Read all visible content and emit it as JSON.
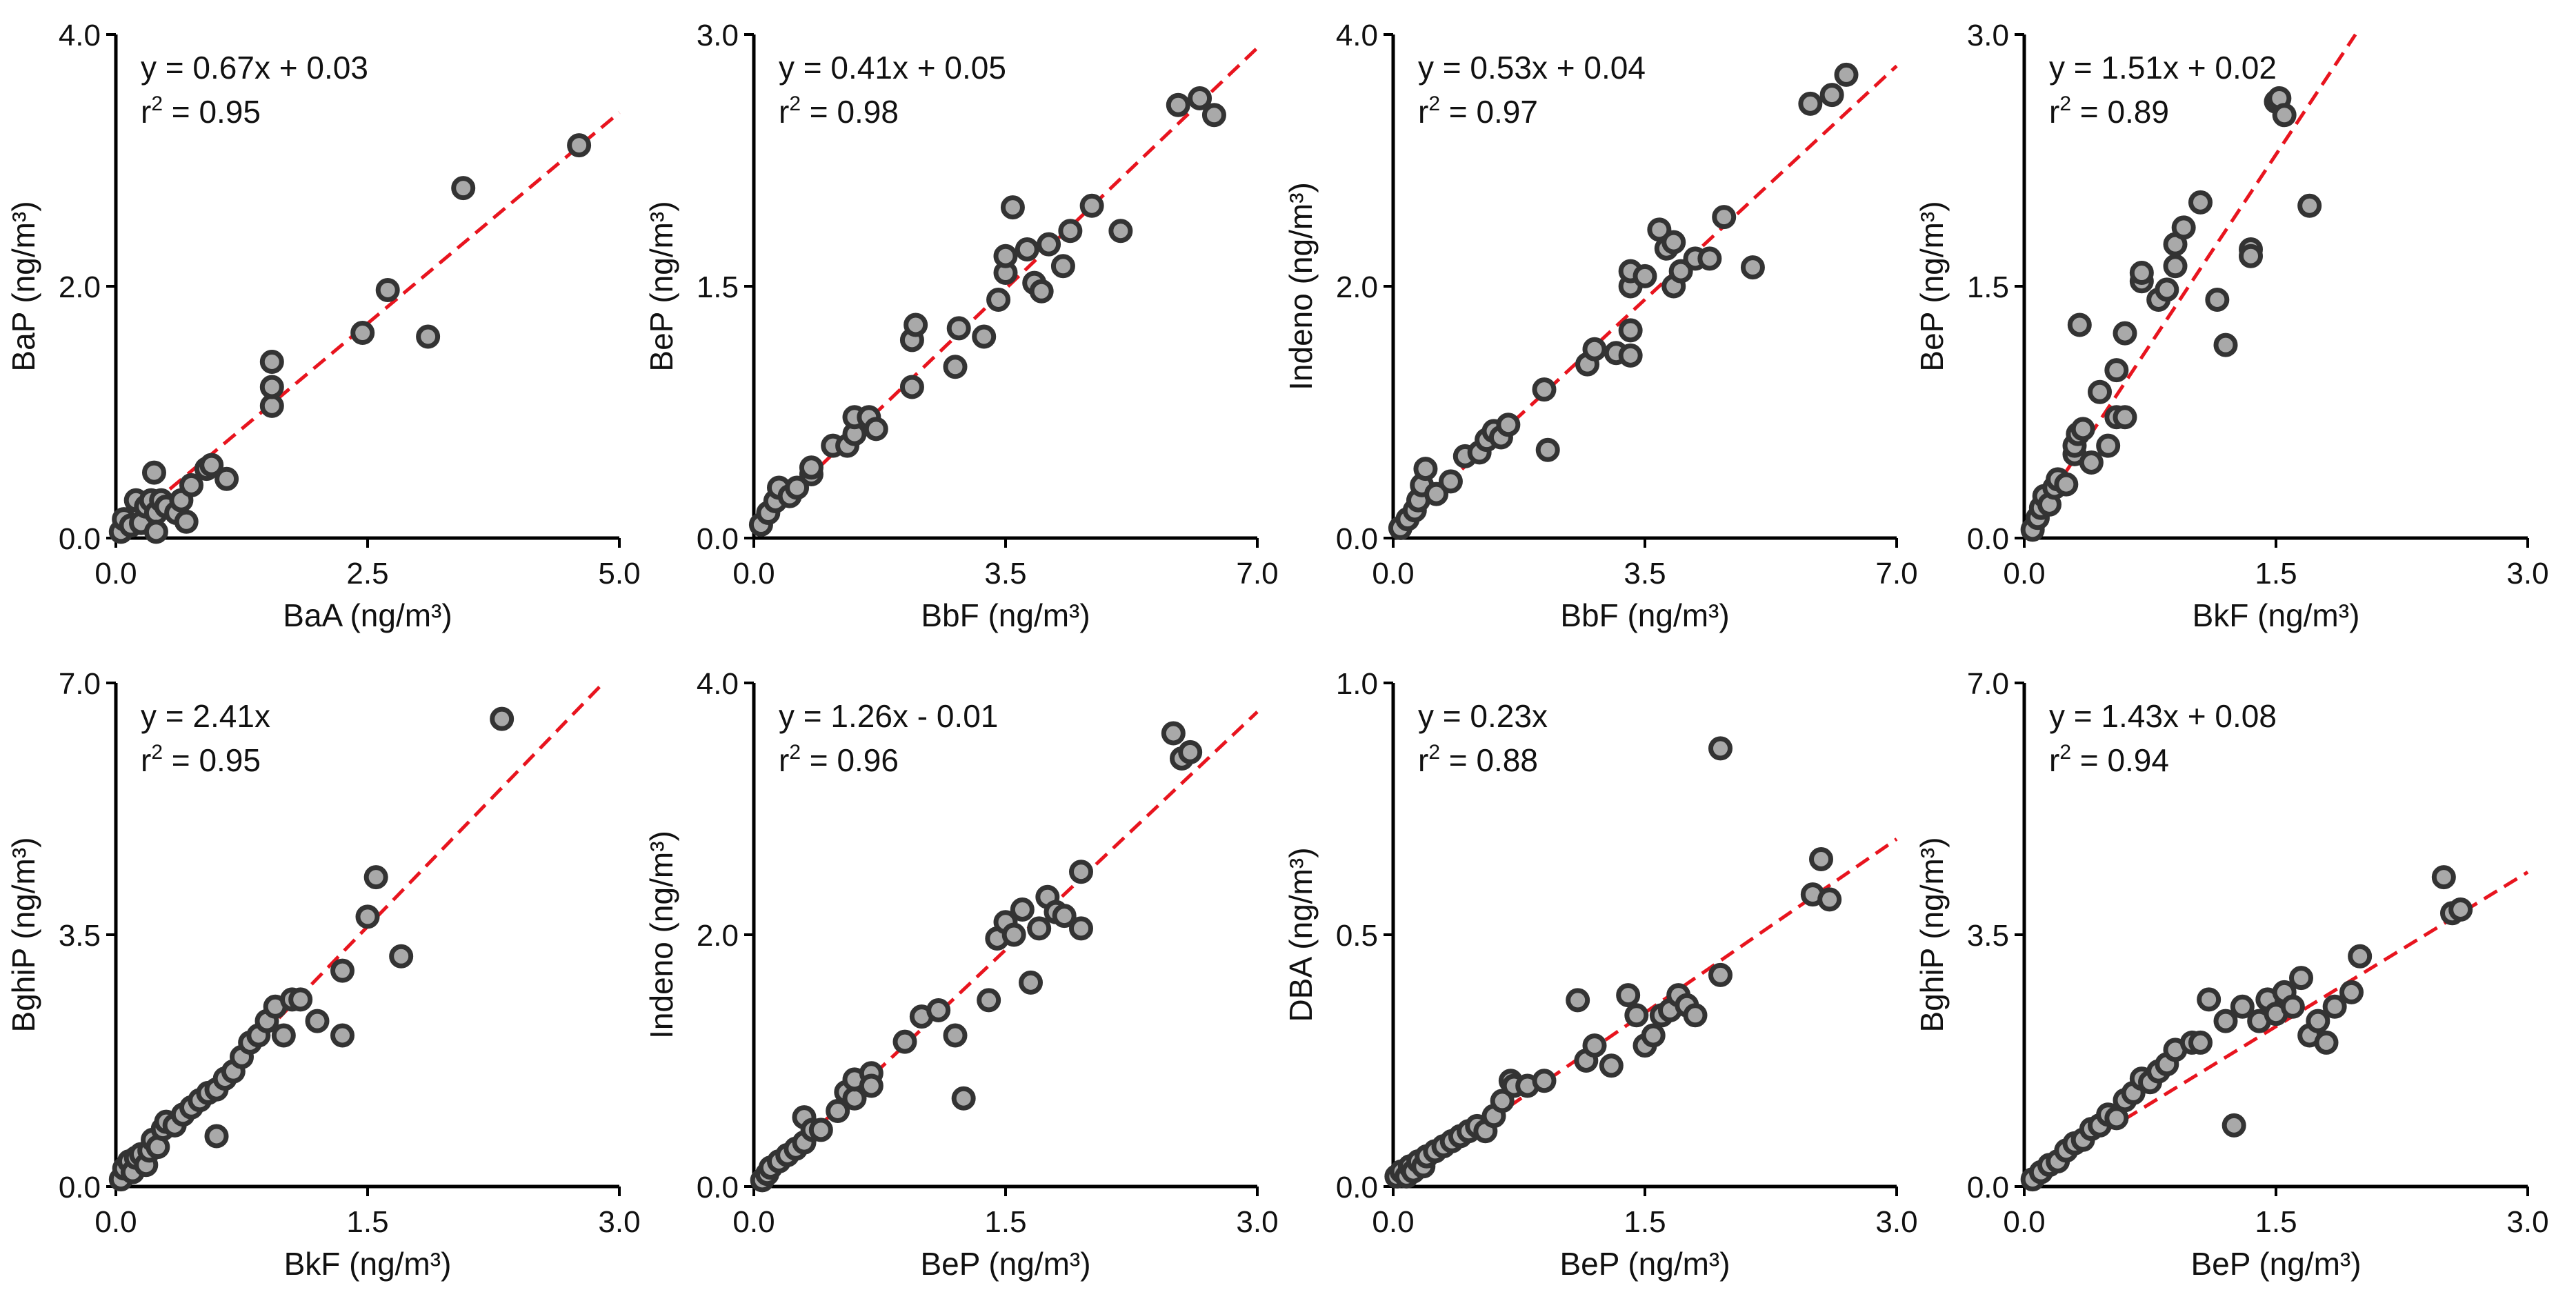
{
  "chart_data": [
    {
      "type": "scatter",
      "xlabel": "BaA (ng/m³)",
      "ylabel": "BaP (ng/m³)",
      "xlim": [
        0,
        5
      ],
      "ylim": [
        0,
        4
      ],
      "xticks": [
        "0.0",
        "2.5",
        "5.0"
      ],
      "yticks": [
        "0.0",
        "2.0",
        "4.0"
      ],
      "equation": "y = 0.67x + 0.03",
      "r2_label": "r",
      "r2_sup": "2",
      "r2_value": " = 0.95",
      "fit": {
        "slope": 0.67,
        "intercept": 0.03
      },
      "points": [
        [
          0.05,
          0.05
        ],
        [
          0.08,
          0.15
        ],
        [
          0.15,
          0.1
        ],
        [
          0.2,
          0.3
        ],
        [
          0.25,
          0.12
        ],
        [
          0.3,
          0.25
        ],
        [
          0.35,
          0.3
        ],
        [
          0.4,
          0.2
        ],
        [
          0.45,
          0.3
        ],
        [
          0.5,
          0.25
        ],
        [
          0.38,
          0.52
        ],
        [
          0.6,
          0.2
        ],
        [
          0.65,
          0.3
        ],
        [
          0.4,
          0.05
        ],
        [
          0.7,
          0.13
        ],
        [
          0.75,
          0.42
        ],
        [
          0.9,
          0.55
        ],
        [
          1.1,
          0.47
        ],
        [
          0.95,
          0.58
        ],
        [
          1.55,
          1.05
        ],
        [
          1.55,
          1.2
        ],
        [
          1.55,
          1.4
        ],
        [
          2.45,
          1.63
        ],
        [
          2.7,
          1.97
        ],
        [
          3.1,
          1.6
        ],
        [
          3.45,
          2.78
        ],
        [
          4.6,
          3.12
        ]
      ]
    },
    {
      "type": "scatter",
      "xlabel": "BbF (ng/m³)",
      "ylabel": "BeP (ng/m³)",
      "xlim": [
        0,
        7
      ],
      "ylim": [
        0,
        3
      ],
      "xticks": [
        "0.0",
        "3.5",
        "7.0"
      ],
      "yticks": [
        "0.0",
        "1.5",
        "3.0"
      ],
      "equation": "y = 0.41x + 0.05",
      "r2_label": "r",
      "r2_sup": "2",
      "r2_value": " = 0.98",
      "fit": {
        "slope": 0.41,
        "intercept": 0.05
      },
      "points": [
        [
          0.1,
          0.08
        ],
        [
          0.2,
          0.15
        ],
        [
          0.3,
          0.22
        ],
        [
          0.35,
          0.3
        ],
        [
          0.5,
          0.25
        ],
        [
          0.6,
          0.3
        ],
        [
          0.8,
          0.38
        ],
        [
          0.8,
          0.42
        ],
        [
          1.1,
          0.55
        ],
        [
          1.3,
          0.55
        ],
        [
          1.4,
          0.62
        ],
        [
          1.4,
          0.72
        ],
        [
          1.6,
          0.72
        ],
        [
          1.7,
          0.65
        ],
        [
          2.2,
          0.9
        ],
        [
          2.2,
          1.18
        ],
        [
          2.25,
          1.27
        ],
        [
          2.8,
          1.02
        ],
        [
          2.85,
          1.25
        ],
        [
          3.2,
          1.2
        ],
        [
          3.4,
          1.42
        ],
        [
          3.5,
          1.58
        ],
        [
          3.5,
          1.68
        ],
        [
          3.6,
          1.97
        ],
        [
          3.8,
          1.72
        ],
        [
          3.9,
          1.52
        ],
        [
          4.0,
          1.47
        ],
        [
          4.1,
          1.75
        ],
        [
          4.3,
          1.62
        ],
        [
          4.4,
          1.83
        ],
        [
          4.7,
          1.98
        ],
        [
          5.1,
          1.83
        ],
        [
          5.9,
          2.58
        ],
        [
          6.2,
          2.62
        ],
        [
          6.4,
          2.52
        ]
      ]
    },
    {
      "type": "scatter",
      "xlabel": "BbF (ng/m³)",
      "ylabel": "Indeno (ng/m³)",
      "xlim": [
        0,
        7
      ],
      "ylim": [
        0,
        4
      ],
      "xticks": [
        "0.0",
        "3.5",
        "7.0"
      ],
      "yticks": [
        "0.0",
        "2.0",
        "4.0"
      ],
      "equation": "y = 0.53x + 0.04",
      "r2_label": "r",
      "r2_sup": "2",
      "r2_value": " = 0.97",
      "fit": {
        "slope": 0.53,
        "intercept": 0.04
      },
      "points": [
        [
          0.1,
          0.08
        ],
        [
          0.2,
          0.15
        ],
        [
          0.3,
          0.22
        ],
        [
          0.35,
          0.3
        ],
        [
          0.4,
          0.42
        ],
        [
          0.45,
          0.55
        ],
        [
          0.6,
          0.35
        ],
        [
          0.8,
          0.45
        ],
        [
          1.0,
          0.65
        ],
        [
          1.2,
          0.68
        ],
        [
          1.3,
          0.78
        ],
        [
          1.4,
          0.85
        ],
        [
          1.5,
          0.8
        ],
        [
          1.6,
          0.9
        ],
        [
          2.1,
          1.18
        ],
        [
          2.15,
          0.7
        ],
        [
          2.7,
          1.38
        ],
        [
          2.8,
          1.5
        ],
        [
          3.1,
          1.47
        ],
        [
          3.3,
          1.45
        ],
        [
          3.3,
          1.65
        ],
        [
          3.3,
          2.0
        ],
        [
          3.3,
          2.12
        ],
        [
          3.5,
          2.08
        ],
        [
          3.7,
          2.45
        ],
        [
          3.8,
          2.3
        ],
        [
          3.9,
          2.0
        ],
        [
          3.9,
          2.35
        ],
        [
          4.0,
          2.12
        ],
        [
          4.2,
          2.22
        ],
        [
          4.4,
          2.22
        ],
        [
          4.6,
          2.55
        ],
        [
          5.0,
          2.15
        ],
        [
          5.8,
          3.45
        ],
        [
          6.1,
          3.52
        ],
        [
          6.3,
          3.68
        ]
      ]
    },
    {
      "type": "scatter",
      "xlabel": "BkF (ng/m³)",
      "ylabel": "BeP (ng/m³)",
      "xlim": [
        0,
        3
      ],
      "ylim": [
        0,
        3
      ],
      "xticks": [
        "0.0",
        "1.5",
        "3.0"
      ],
      "yticks": [
        "0.0",
        "1.5",
        "3.0"
      ],
      "equation": "y = 1.51x + 0.02",
      "r2_label": "r",
      "r2_sup": "2",
      "r2_value": " = 0.89",
      "fit": {
        "slope": 1.51,
        "intercept": 0.02
      },
      "points": [
        [
          0.05,
          0.05
        ],
        [
          0.08,
          0.12
        ],
        [
          0.1,
          0.18
        ],
        [
          0.12,
          0.25
        ],
        [
          0.15,
          0.2
        ],
        [
          0.18,
          0.3
        ],
        [
          0.2,
          0.35
        ],
        [
          0.25,
          0.32
        ],
        [
          0.3,
          0.5
        ],
        [
          0.3,
          0.55
        ],
        [
          0.32,
          0.62
        ],
        [
          0.35,
          0.65
        ],
        [
          0.4,
          0.45
        ],
        [
          0.45,
          0.87
        ],
        [
          0.5,
          0.55
        ],
        [
          0.55,
          0.72
        ],
        [
          0.55,
          1.0
        ],
        [
          0.6,
          0.72
        ],
        [
          0.6,
          1.22
        ],
        [
          0.33,
          1.27
        ],
        [
          0.7,
          1.53
        ],
        [
          0.7,
          1.58
        ],
        [
          0.8,
          1.42
        ],
        [
          0.85,
          1.48
        ],
        [
          0.9,
          1.62
        ],
        [
          0.9,
          1.75
        ],
        [
          0.95,
          1.85
        ],
        [
          1.05,
          2.0
        ],
        [
          1.15,
          1.42
        ],
        [
          1.2,
          1.15
        ],
        [
          1.35,
          1.72
        ],
        [
          1.35,
          1.68
        ],
        [
          1.5,
          2.6
        ],
        [
          1.52,
          2.62
        ],
        [
          1.55,
          2.52
        ],
        [
          1.7,
          1.98
        ]
      ]
    },
    {
      "type": "scatter",
      "xlabel": "BkF (ng/m³)",
      "ylabel": "BghiP (ng/m³)",
      "xlim": [
        0,
        3
      ],
      "ylim": [
        0,
        7
      ],
      "xticks": [
        "0.0",
        "1.5",
        "3.0"
      ],
      "yticks": [
        "0.0",
        "3.5",
        "7.0"
      ],
      "equation": "y = 2.41x",
      "r2_label": "r",
      "r2_sup": "2",
      "r2_value": " = 0.95",
      "fit": {
        "slope": 2.41,
        "intercept": 0
      },
      "points": [
        [
          0.03,
          0.1
        ],
        [
          0.05,
          0.25
        ],
        [
          0.08,
          0.35
        ],
        [
          0.1,
          0.2
        ],
        [
          0.12,
          0.4
        ],
        [
          0.15,
          0.45
        ],
        [
          0.18,
          0.3
        ],
        [
          0.2,
          0.5
        ],
        [
          0.22,
          0.65
        ],
        [
          0.25,
          0.55
        ],
        [
          0.28,
          0.8
        ],
        [
          0.3,
          0.9
        ],
        [
          0.35,
          0.85
        ],
        [
          0.4,
          1.0
        ],
        [
          0.45,
          1.1
        ],
        [
          0.5,
          1.2
        ],
        [
          0.55,
          1.3
        ],
        [
          0.6,
          1.35
        ],
        [
          0.6,
          0.7
        ],
        [
          0.65,
          1.5
        ],
        [
          0.7,
          1.6
        ],
        [
          0.75,
          1.8
        ],
        [
          0.8,
          2.0
        ],
        [
          0.85,
          2.1
        ],
        [
          0.9,
          2.3
        ],
        [
          0.95,
          2.5
        ],
        [
          1.0,
          2.1
        ],
        [
          1.05,
          2.6
        ],
        [
          1.1,
          2.6
        ],
        [
          1.2,
          2.3
        ],
        [
          1.35,
          2.1
        ],
        [
          1.35,
          3.0
        ],
        [
          1.5,
          3.75
        ],
        [
          1.55,
          4.3
        ],
        [
          1.7,
          3.2
        ],
        [
          2.3,
          6.5
        ]
      ]
    },
    {
      "type": "scatter",
      "xlabel": "BeP (ng/m³)",
      "ylabel": "Indeno (ng/m³)",
      "xlim": [
        0,
        3
      ],
      "ylim": [
        0,
        4
      ],
      "xticks": [
        "0.0",
        "1.5",
        "3.0"
      ],
      "yticks": [
        "0.0",
        "2.0",
        "4.0"
      ],
      "equation": "y = 1.26x - 0.01",
      "r2_label": "r",
      "r2_sup": "2",
      "r2_value": " = 0.96",
      "fit": {
        "slope": 1.26,
        "intercept": -0.01
      },
      "points": [
        [
          0.05,
          0.05
        ],
        [
          0.08,
          0.1
        ],
        [
          0.1,
          0.15
        ],
        [
          0.15,
          0.2
        ],
        [
          0.2,
          0.25
        ],
        [
          0.25,
          0.3
        ],
        [
          0.3,
          0.35
        ],
        [
          0.3,
          0.55
        ],
        [
          0.35,
          0.45
        ],
        [
          0.4,
          0.45
        ],
        [
          0.5,
          0.6
        ],
        [
          0.55,
          0.75
        ],
        [
          0.6,
          0.7
        ],
        [
          0.6,
          0.85
        ],
        [
          0.7,
          0.9
        ],
        [
          0.7,
          0.8
        ],
        [
          0.9,
          1.15
        ],
        [
          1.0,
          1.35
        ],
        [
          1.1,
          1.4
        ],
        [
          1.2,
          1.2
        ],
        [
          1.25,
          0.7
        ],
        [
          1.4,
          1.48
        ],
        [
          1.45,
          1.97
        ],
        [
          1.5,
          2.1
        ],
        [
          1.55,
          2.0
        ],
        [
          1.6,
          2.2
        ],
        [
          1.65,
          1.62
        ],
        [
          1.7,
          2.05
        ],
        [
          1.75,
          2.3
        ],
        [
          1.8,
          2.18
        ],
        [
          1.85,
          2.15
        ],
        [
          1.95,
          2.05
        ],
        [
          1.95,
          2.5
        ],
        [
          2.5,
          3.6
        ],
        [
          2.55,
          3.4
        ],
        [
          2.6,
          3.45
        ]
      ]
    },
    {
      "type": "scatter",
      "xlabel": "BeP (ng/m³)",
      "ylabel": "DBA (ng/m³)",
      "xlim": [
        0,
        3
      ],
      "ylim": [
        0,
        1
      ],
      "xticks": [
        "0.0",
        "1.5",
        "3.0"
      ],
      "yticks": [
        "0.0",
        "0.5",
        "1.0"
      ],
      "equation": "y = 0.23x",
      "r2_label": "r",
      "r2_sup": "2",
      "r2_value": " = 0.88",
      "fit": {
        "slope": 0.23,
        "intercept": 0
      },
      "points": [
        [
          0.02,
          0.02
        ],
        [
          0.05,
          0.03
        ],
        [
          0.08,
          0.02
        ],
        [
          0.1,
          0.04
        ],
        [
          0.12,
          0.03
        ],
        [
          0.15,
          0.05
        ],
        [
          0.18,
          0.04
        ],
        [
          0.2,
          0.06
        ],
        [
          0.25,
          0.07
        ],
        [
          0.3,
          0.08
        ],
        [
          0.35,
          0.09
        ],
        [
          0.4,
          0.1
        ],
        [
          0.45,
          0.11
        ],
        [
          0.5,
          0.12
        ],
        [
          0.55,
          0.11
        ],
        [
          0.6,
          0.14
        ],
        [
          0.65,
          0.17
        ],
        [
          0.7,
          0.21
        ],
        [
          0.72,
          0.2
        ],
        [
          0.8,
          0.2
        ],
        [
          0.9,
          0.21
        ],
        [
          1.1,
          0.37
        ],
        [
          1.15,
          0.25
        ],
        [
          1.2,
          0.28
        ],
        [
          1.3,
          0.24
        ],
        [
          1.4,
          0.38
        ],
        [
          1.45,
          0.34
        ],
        [
          1.5,
          0.28
        ],
        [
          1.55,
          0.3
        ],
        [
          1.6,
          0.34
        ],
        [
          1.65,
          0.35
        ],
        [
          1.7,
          0.38
        ],
        [
          1.75,
          0.36
        ],
        [
          1.8,
          0.34
        ],
        [
          1.95,
          0.42
        ],
        [
          1.95,
          0.87
        ],
        [
          2.5,
          0.58
        ],
        [
          2.55,
          0.65
        ],
        [
          2.6,
          0.57
        ]
      ]
    },
    {
      "type": "scatter",
      "xlabel": "BeP (ng/m³)",
      "ylabel": "BghiP (ng/m³)",
      "xlim": [
        0,
        3
      ],
      "ylim": [
        0,
        7
      ],
      "xticks": [
        "0.0",
        "1.5",
        "3.0"
      ],
      "yticks": [
        "0.0",
        "3.5",
        "7.0"
      ],
      "equation": "y = 1.43x + 0.08",
      "r2_label": "r",
      "r2_sup": "2",
      "r2_value": " = 0.94",
      "fit": {
        "slope": 1.43,
        "intercept": 0.08
      },
      "points": [
        [
          0.05,
          0.1
        ],
        [
          0.1,
          0.2
        ],
        [
          0.15,
          0.3
        ],
        [
          0.2,
          0.35
        ],
        [
          0.25,
          0.5
        ],
        [
          0.3,
          0.6
        ],
        [
          0.35,
          0.65
        ],
        [
          0.4,
          0.8
        ],
        [
          0.45,
          0.85
        ],
        [
          0.5,
          1.0
        ],
        [
          0.55,
          0.95
        ],
        [
          0.6,
          1.2
        ],
        [
          0.65,
          1.3
        ],
        [
          0.7,
          1.5
        ],
        [
          0.75,
          1.45
        ],
        [
          0.8,
          1.6
        ],
        [
          0.85,
          1.7
        ],
        [
          0.9,
          1.9
        ],
        [
          1.0,
          2.0
        ],
        [
          1.05,
          2.0
        ],
        [
          1.1,
          2.6
        ],
        [
          1.2,
          2.3
        ],
        [
          1.25,
          0.85
        ],
        [
          1.3,
          2.5
        ],
        [
          1.4,
          2.3
        ],
        [
          1.45,
          2.6
        ],
        [
          1.5,
          2.4
        ],
        [
          1.55,
          2.7
        ],
        [
          1.6,
          2.5
        ],
        [
          1.65,
          2.9
        ],
        [
          1.7,
          2.1
        ],
        [
          1.75,
          2.3
        ],
        [
          1.8,
          2.0
        ],
        [
          1.85,
          2.5
        ],
        [
          1.95,
          2.7
        ],
        [
          2.0,
          3.2
        ],
        [
          2.5,
          4.3
        ],
        [
          2.55,
          3.8
        ],
        [
          2.6,
          3.85
        ]
      ]
    }
  ]
}
